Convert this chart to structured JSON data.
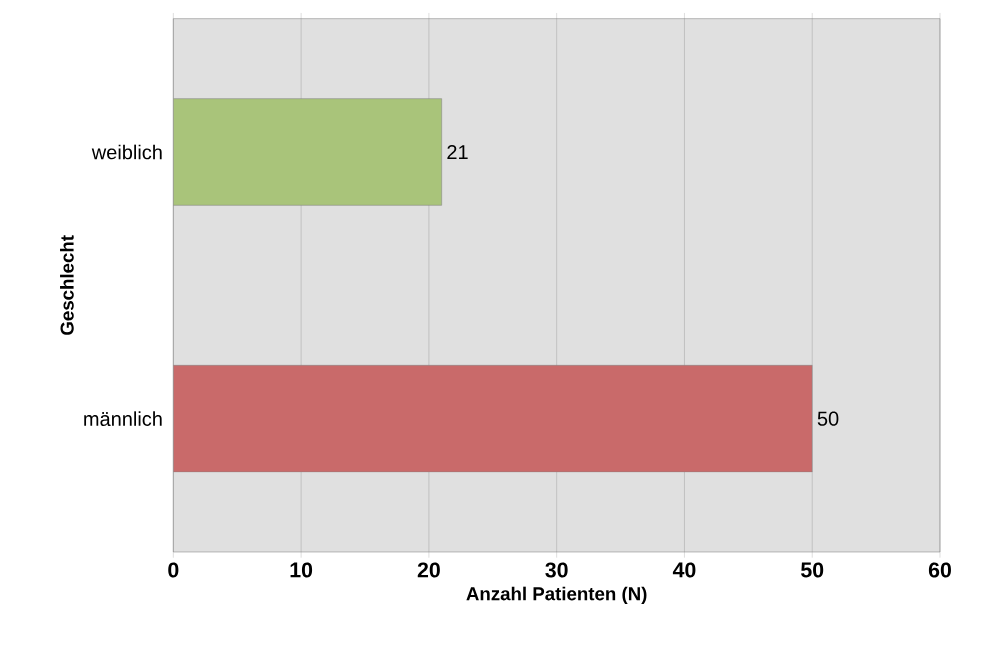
{
  "chart_data": {
    "type": "bar",
    "orientation": "horizontal",
    "categories": [
      "weiblich",
      "männlich"
    ],
    "values": [
      21,
      50
    ],
    "colors": [
      "#a9c47a",
      "#c96a6a"
    ],
    "xlabel": "Anzahl Patienten (N)",
    "ylabel": "Geschlecht",
    "xlim": [
      0,
      60
    ],
    "xticks": [
      0,
      10,
      20,
      30,
      40,
      50,
      60
    ],
    "grid": "x",
    "data_labels": true
  }
}
